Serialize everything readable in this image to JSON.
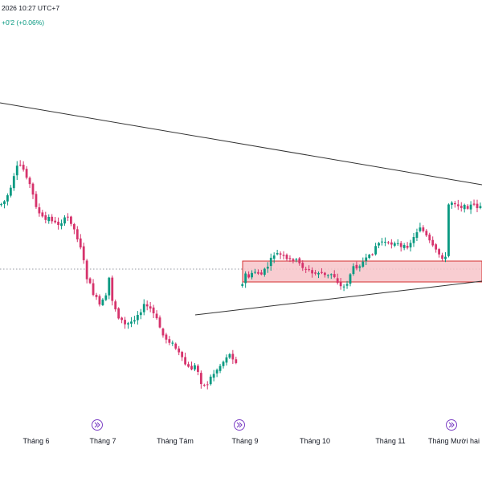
{
  "header": {
    "datetime_text": "2026 10:27 UTC+7",
    "change_text": "+0'2 (+0.06%)"
  },
  "colors": {
    "up": "#089981",
    "down": "#d6336c",
    "zone_fill": "#f7c4c9",
    "zone_border": "#d32f2f",
    "trendline": "#333333",
    "dotted_line": "#9598a1",
    "badge": "#7b3fc4"
  },
  "chart_data": {
    "type": "candlestick",
    "x_axis": {
      "months": [
        "Tháng 6",
        "Tháng 7",
        "Tháng Tám",
        "Tháng 9",
        "Tháng 10",
        "Tháng 11",
        "Tháng Mười hai"
      ]
    },
    "event_badges": 3,
    "grid": false,
    "annotations": [
      "descending trendline",
      "ascending trendline",
      "support/resistance zone",
      "dotted horizontal reference line"
    ]
  }
}
